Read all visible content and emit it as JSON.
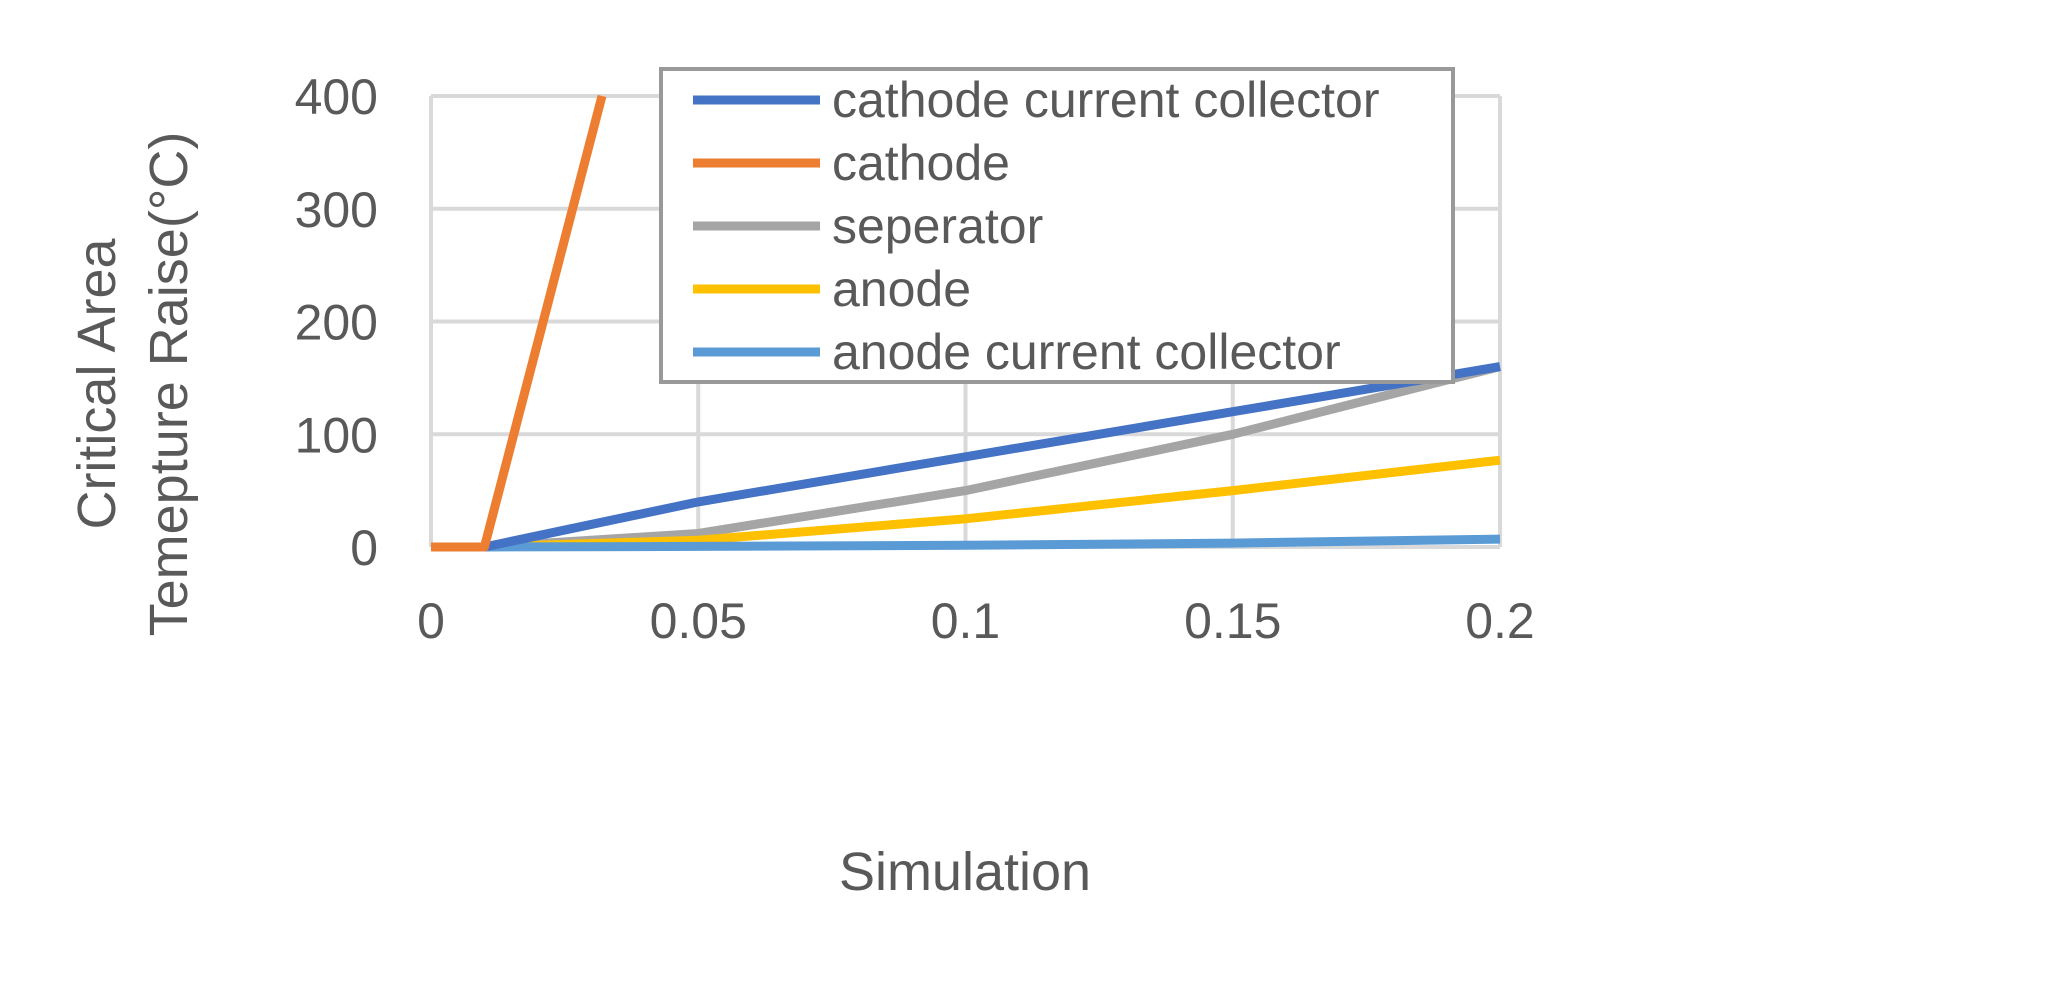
{
  "chart_data": {
    "type": "line",
    "title": "",
    "xlabel": "Simulation",
    "ylabel_lines": [
      "Critical Area",
      "Temepture Raise(°C)"
    ],
    "xlim": [
      0,
      0.2
    ],
    "ylim": [
      0,
      400
    ],
    "x_ticks": [
      0,
      0.05,
      0.1,
      0.15,
      0.2
    ],
    "x_tick_labels": [
      "0",
      "0.05",
      "0.1",
      "0.15",
      "0.2"
    ],
    "y_ticks": [
      0,
      100,
      200,
      300,
      400
    ],
    "y_tick_labels": [
      "0",
      "100",
      "200",
      "300",
      "400"
    ],
    "grid": true,
    "legend_position": "top-right",
    "series": [
      {
        "name": "cathode current collector",
        "color": "#4472C4",
        "x": [
          0,
          0.01,
          0.05,
          0.1,
          0.15,
          0.2
        ],
        "y": [
          0,
          0,
          40,
          80,
          120,
          160
        ]
      },
      {
        "name": "cathode",
        "color": "#ED7D31",
        "x": [
          0,
          0.01,
          0.032
        ],
        "y": [
          0,
          0,
          400
        ]
      },
      {
        "name": "seperator",
        "color": "#A5A5A5",
        "x": [
          0,
          0.01,
          0.05,
          0.1,
          0.15,
          0.2
        ],
        "y": [
          0,
          0,
          12,
          50,
          100,
          160
        ]
      },
      {
        "name": "anode",
        "color": "#FFC000",
        "x": [
          0,
          0.01,
          0.05,
          0.1,
          0.15,
          0.2
        ],
        "y": [
          0,
          0,
          6,
          25,
          50,
          77
        ]
      },
      {
        "name": "anode current collector",
        "color": "#5B9BD5",
        "x": [
          0,
          0.01,
          0.05,
          0.1,
          0.15,
          0.2
        ],
        "y": [
          0,
          0,
          0.5,
          1.5,
          3.5,
          7
        ]
      }
    ]
  }
}
